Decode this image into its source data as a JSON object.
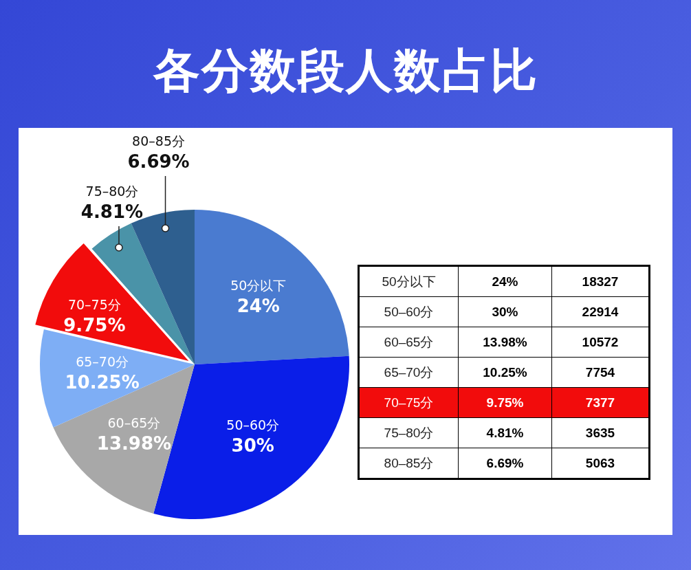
{
  "chart_data": {
    "type": "pie",
    "title": "各分数段人数占比",
    "categories": [
      "50分以下",
      "50–60分",
      "60–65分",
      "65–70分",
      "70–75分",
      "75–80分",
      "80–85分"
    ],
    "values": [
      24,
      30,
      13.98,
      10.25,
      9.75,
      4.81,
      6.69
    ],
    "annotations": [
      "18327",
      "22914",
      "10572",
      "7754",
      "7377",
      "3635",
      "5063"
    ],
    "value_labels": [
      "24%",
      "30%",
      "13.98%",
      "10.25%",
      "9.75%",
      "4.81%",
      "6.69%"
    ],
    "colors": [
      "#4a7bd0",
      "#0a1ee8",
      "#a8a8a8",
      "#7eaef5",
      "#f20c0c",
      "#4a93a8",
      "#2e5f8f"
    ]
  }
}
